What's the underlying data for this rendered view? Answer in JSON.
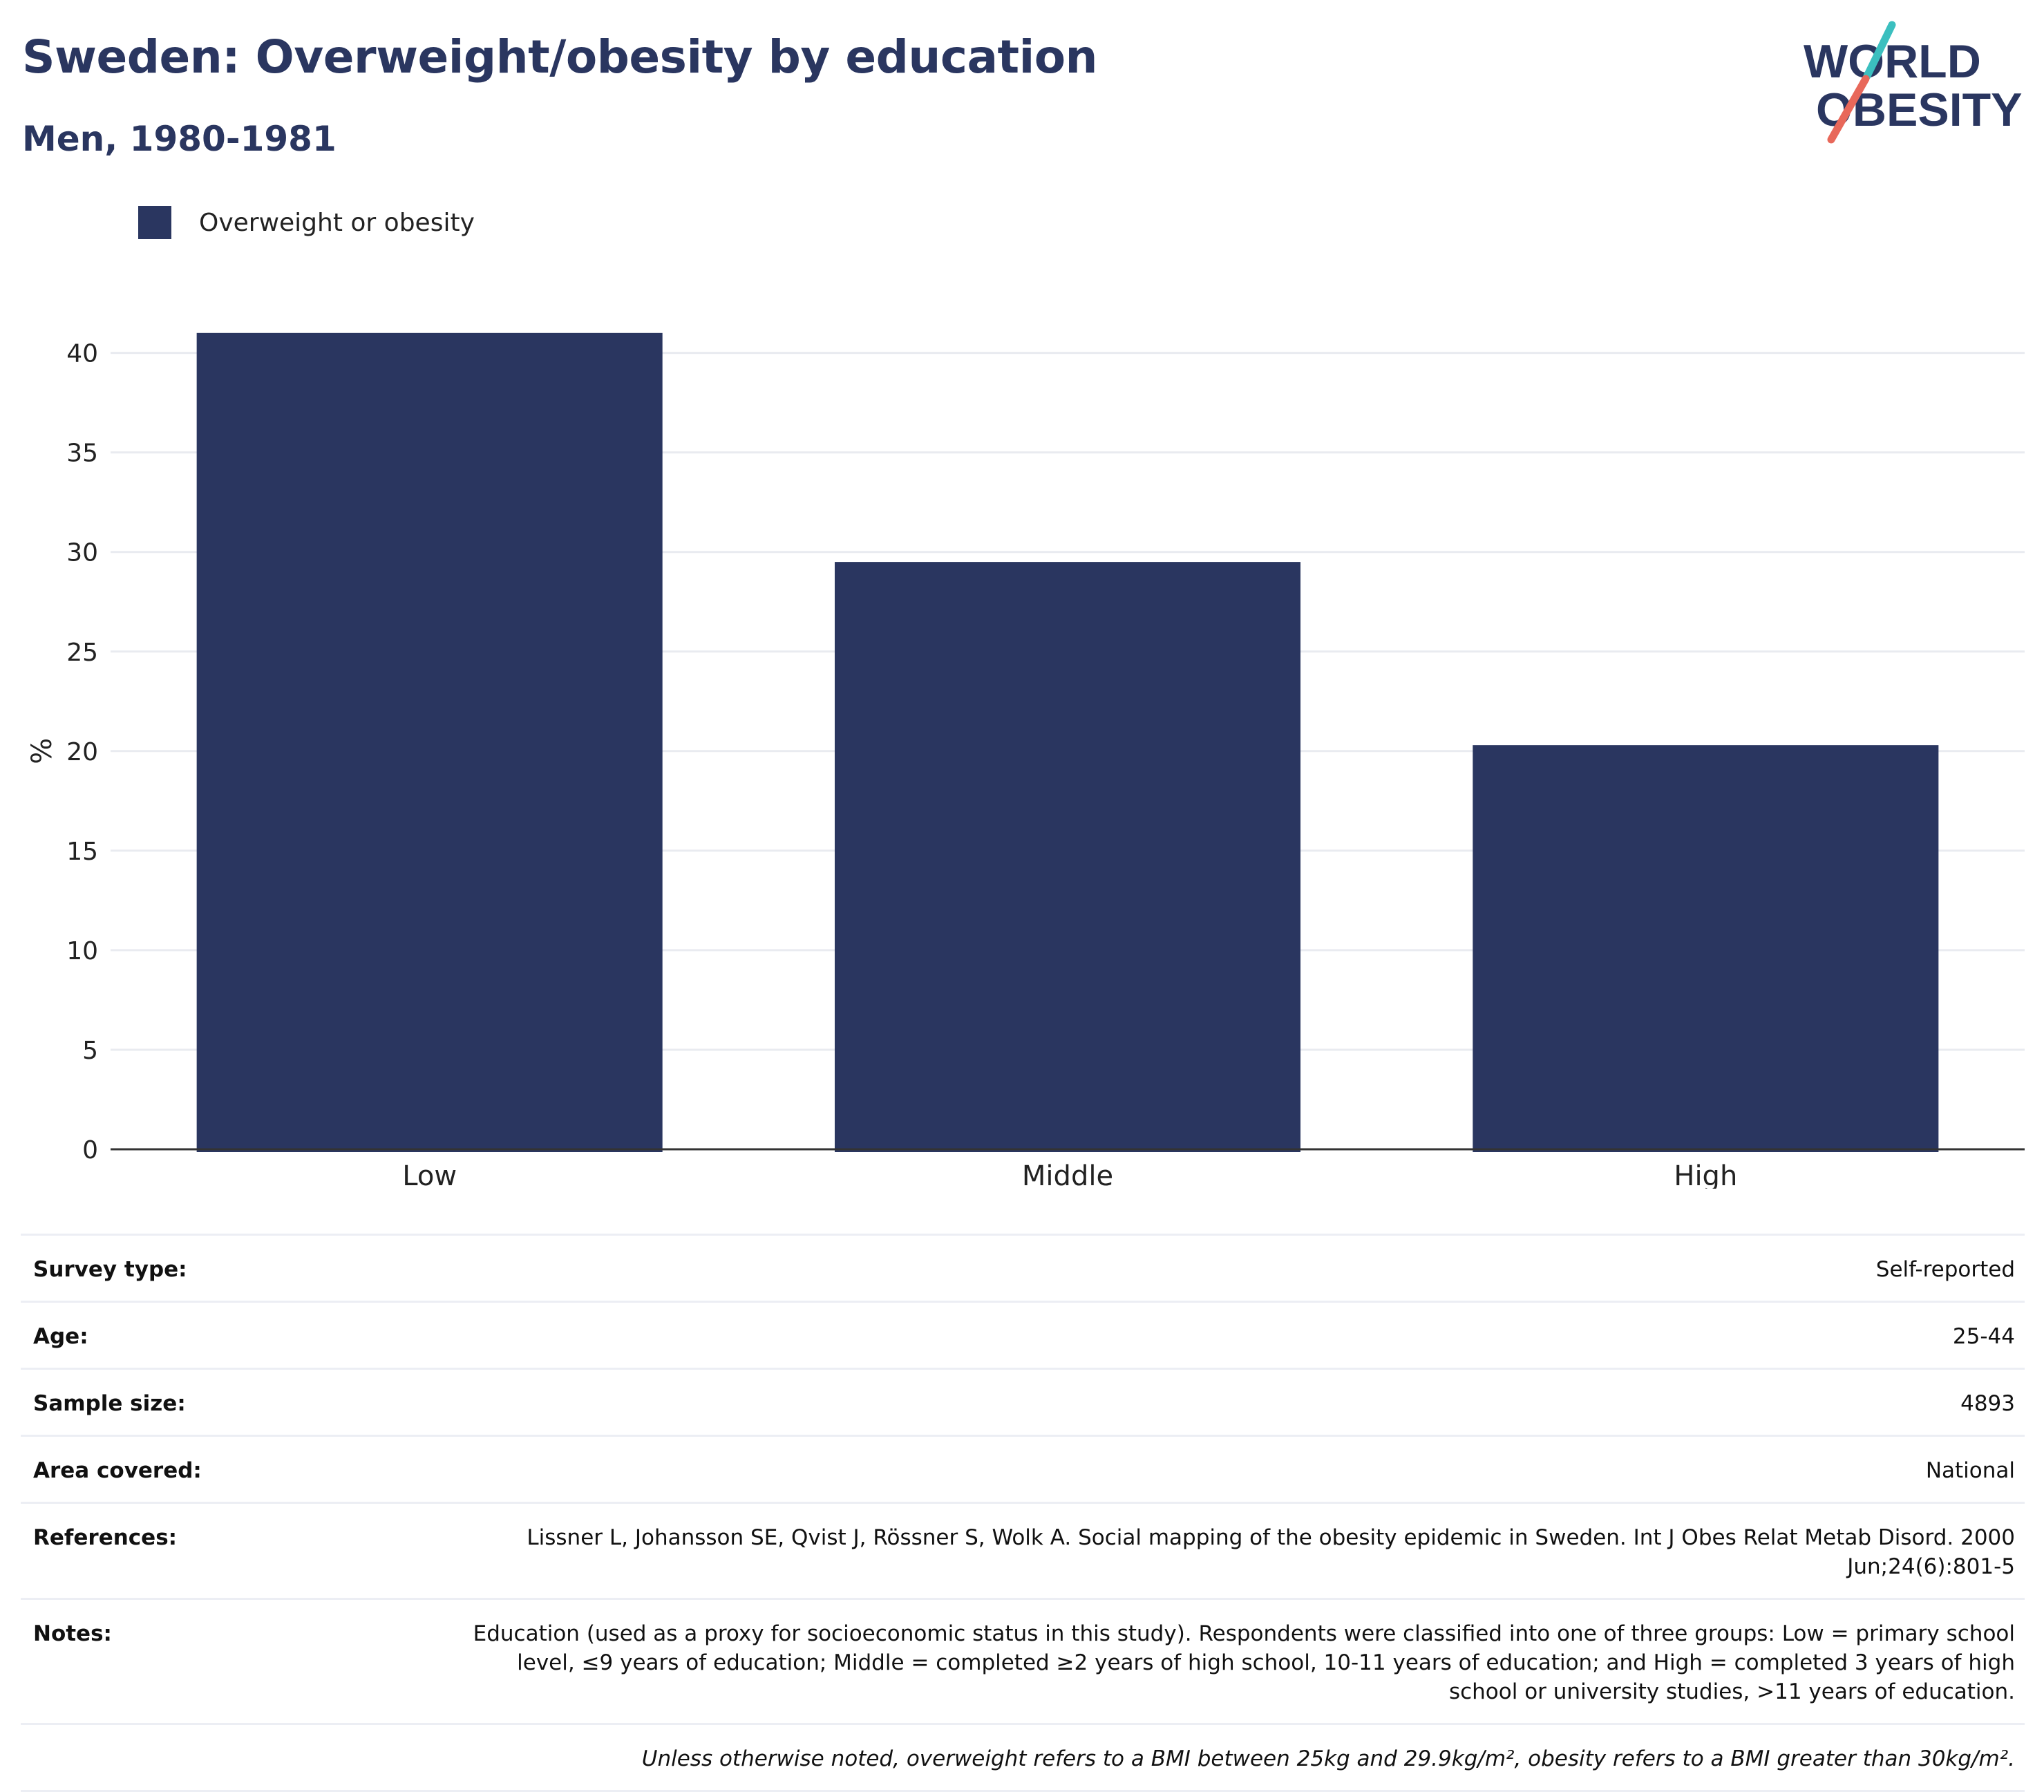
{
  "header": {
    "title": "Sweden: Overweight/obesity by education",
    "subtitle": "Men, 1980-1981"
  },
  "logo": {
    "line1": "WORLD",
    "line2": "OBESITY",
    "colors": {
      "text": "#2a3660",
      "slash_top": "#3bbfbf",
      "slash_bottom": "#e8685a"
    }
  },
  "legend": {
    "label": "Overweight or obesity",
    "color": "#2a3660"
  },
  "chart_data": {
    "type": "bar",
    "categories": [
      "Low",
      "Middle",
      "High"
    ],
    "series": [
      {
        "name": "Overweight or obesity",
        "values": [
          41.0,
          29.5,
          20.3
        ],
        "color": "#2a3660"
      }
    ],
    "ylabel": "%",
    "xlabel": "",
    "ylim": [
      0,
      42
    ],
    "yticks": [
      0,
      5,
      10,
      15,
      20,
      25,
      30,
      35,
      40
    ],
    "grid": true,
    "legend_position": "top-left"
  },
  "info": {
    "rows": [
      {
        "key": "Survey type:",
        "value": "Self-reported"
      },
      {
        "key": "Age:",
        "value": "25-44"
      },
      {
        "key": "Sample size:",
        "value": "4893"
      },
      {
        "key": "Area covered:",
        "value": "National"
      },
      {
        "key": "References:",
        "value": "Lissner L, Johansson SE, Qvist J, Rössner S, Wolk A. Social mapping of the obesity epidemic in Sweden. Int J Obes Relat Metab Disord. 2000 Jun;24(6):801-5"
      },
      {
        "key": "Notes:",
        "value": "Education (used as a proxy for socioeconomic status in this study). Respondents were classified into one of three groups: Low = primary school level, ≤9 years of education; Middle = completed ≥2 years of high school, 10-11 years of education; and High = completed 3 years of high school or university studies, >11 years of education."
      }
    ],
    "footnote": "Unless otherwise noted, overweight refers to a BMI between 25kg and 29.9kg/m², obesity refers to a BMI greater than 30kg/m²."
  }
}
